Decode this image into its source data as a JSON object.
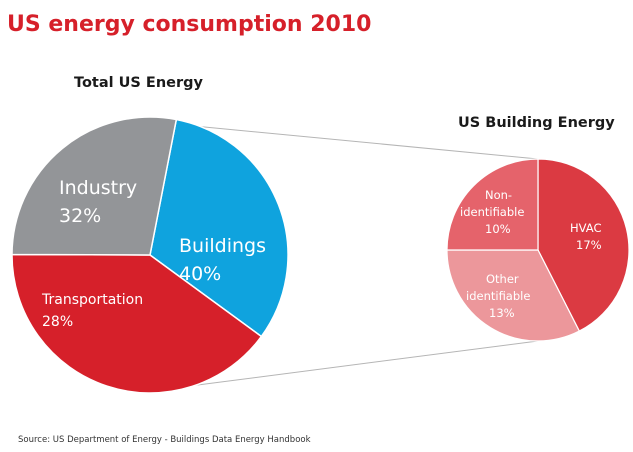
{
  "title": "US energy consumption 2010",
  "source": "Source: US Department of Energy - Buildings Data Energy Handbook",
  "chart_data": [
    {
      "type": "pie",
      "title": "Total US Energy",
      "slices": [
        {
          "name": "Industry",
          "value": 32,
          "label": "32%",
          "color": "#0fa3de"
        },
        {
          "name": "Buildings",
          "value": 40,
          "label": "40%",
          "color": "#d6202a"
        },
        {
          "name": "Transportation",
          "value": 28,
          "label": "28%",
          "color": "#939598"
        }
      ]
    },
    {
      "type": "pie",
      "title": "US Building Energy",
      "slices": [
        {
          "name": "HVAC",
          "value": 17,
          "label": "17%",
          "color": "#db3a42"
        },
        {
          "name": "Other identifiable",
          "value": 13,
          "label": "13%",
          "color": "#ec979b"
        },
        {
          "name": "Non-identifiable",
          "value": 10,
          "label": "10%",
          "color": "#e5636b"
        }
      ]
    }
  ],
  "text": {
    "big": {
      "industry_name": "Industry",
      "buildings_name": "Buildings",
      "transport_name": "Transportation"
    },
    "small": {
      "non_line1": "Non-",
      "non_line2": "identifiable",
      "other_line1": "Other",
      "other_line2": "identifiable",
      "hvac_name": "HVAC"
    }
  }
}
